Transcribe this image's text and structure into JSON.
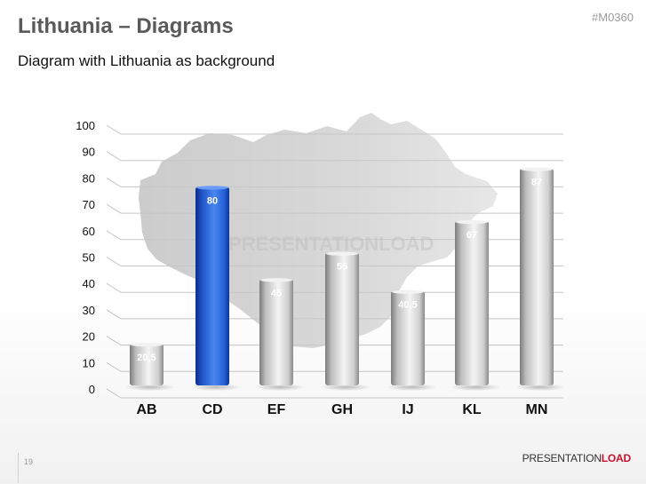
{
  "header": {
    "title": "Lithuania – Diagrams",
    "code": "#M0360",
    "subtitle": "Diagram with Lithuania as background"
  },
  "watermark": "PRESENTATIONLOAD",
  "footer": {
    "page_number": "19",
    "brand_part1": "PRESENTATION",
    "brand_part2": "LOAD"
  },
  "colors": {
    "highlight_bar": "#1f5fd6",
    "default_bar": "#c9c9c9",
    "gridline": "#c6c6c6",
    "map_fill": "#d2d2d2",
    "brand_accent": "#c8102e"
  },
  "chart_data": {
    "type": "bar",
    "categories": [
      "AB",
      "CD",
      "EF",
      "GH",
      "IJ",
      "KL",
      "MN"
    ],
    "values": [
      20.5,
      80,
      45,
      55,
      40.5,
      67,
      87
    ],
    "value_labels": [
      "20,5",
      "80",
      "45",
      "55",
      "40,5",
      "67",
      "87"
    ],
    "highlight_index": 1,
    "ylim": [
      0,
      100
    ],
    "yticks": [
      0,
      10,
      20,
      30,
      40,
      50,
      60,
      70,
      80,
      90,
      100
    ],
    "grid": true,
    "title": "",
    "xlabel": "",
    "ylabel": ""
  }
}
